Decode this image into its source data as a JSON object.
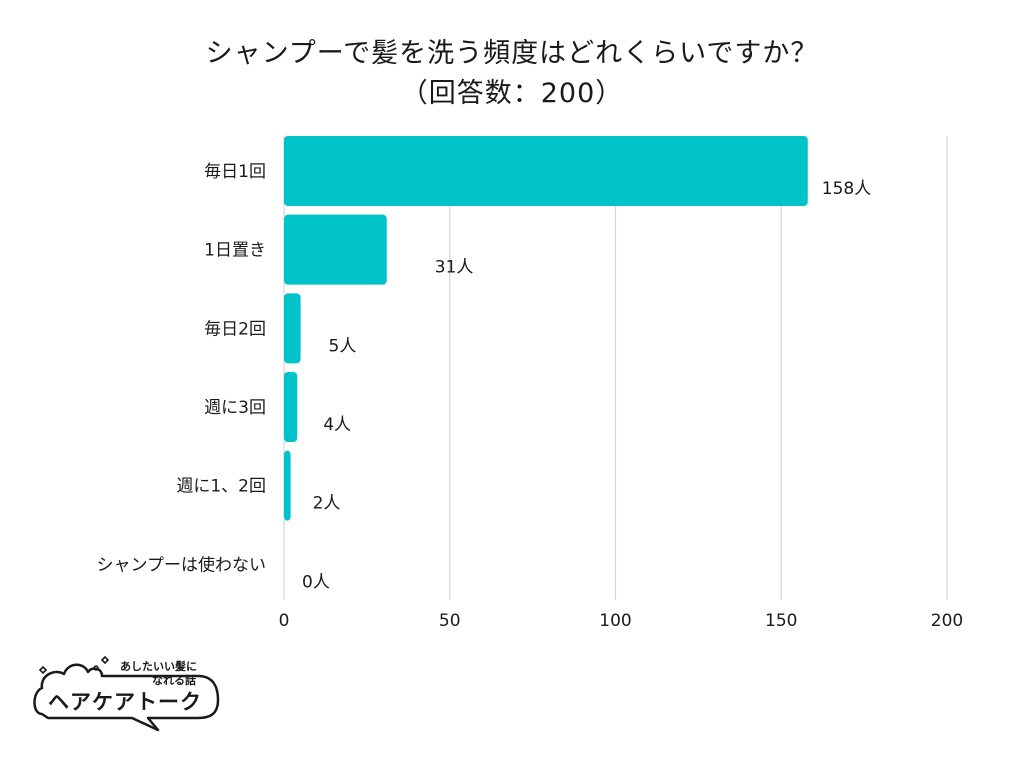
{
  "chart_data": {
    "type": "bar",
    "orientation": "horizontal",
    "title": "シャンプーで髪を洗う頻度はどれくらいですか？",
    "subtitle": "（回答数：200）",
    "categories": [
      "毎日1回",
      "1日置き",
      "毎日2回",
      "週に3回",
      "週に1、2回",
      "シャンプーは使わない"
    ],
    "values": [
      158,
      31,
      5,
      4,
      2,
      0
    ],
    "value_labels": [
      "158人",
      "31人",
      "5人",
      "4人",
      "2人",
      "0人"
    ],
    "xlim": [
      0,
      200
    ],
    "xticks": [
      0,
      50,
      100,
      150,
      200
    ],
    "grid": true,
    "bar_color": "#00c2c9"
  },
  "logo": {
    "tagline_line1": "あしたいい髪に",
    "tagline_line2": "なれる話",
    "name": "ヘアケアトーク"
  }
}
